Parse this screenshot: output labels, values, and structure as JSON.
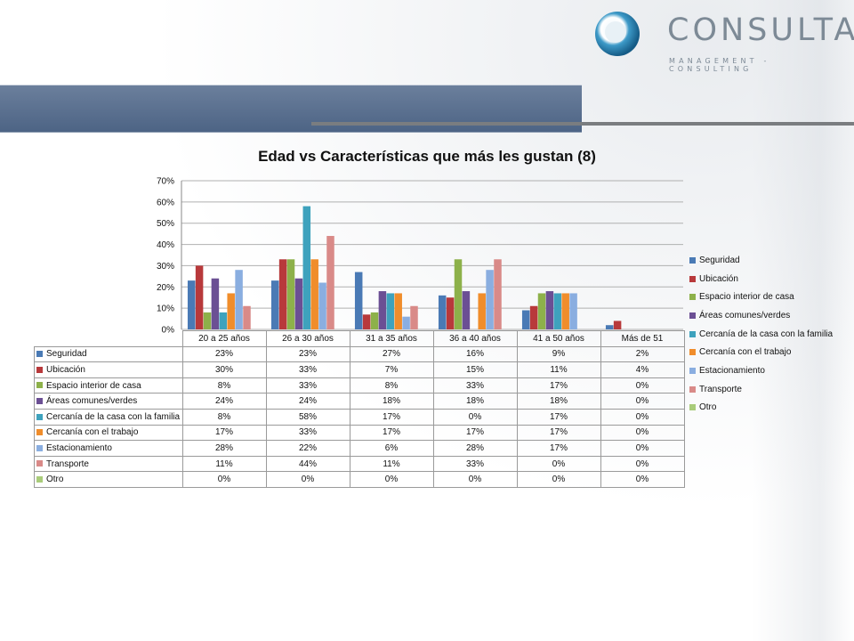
{
  "brand": {
    "name": "CONSULTA",
    "tagline": "MANAGEMENT - CONSULTING"
  },
  "chart_data": {
    "type": "bar",
    "title": "Edad vs Características que más les gustan (8)",
    "categories": [
      "20 a 25 años",
      "26 a 30 años",
      "31 a 35 años",
      "36 a 40 años",
      "41 a 50 años",
      "Más de 51"
    ],
    "ylim": [
      0,
      70
    ],
    "yticks": [
      "0%",
      "10%",
      "20%",
      "30%",
      "40%",
      "50%",
      "60%",
      "70%"
    ],
    "legend_position": "right",
    "grid": true,
    "series": [
      {
        "name": "Seguridad",
        "color": "#4a7ab5",
        "values": [
          23,
          23,
          27,
          16,
          9,
          2
        ],
        "labels": [
          "23%",
          "23%",
          "27%",
          "16%",
          "9%",
          "2%"
        ]
      },
      {
        "name": "Ubicación",
        "color": "#b8393b",
        "values": [
          30,
          33,
          7,
          15,
          11,
          4
        ],
        "labels": [
          "30%",
          "33%",
          "7%",
          "15%",
          "11%",
          "4%"
        ]
      },
      {
        "name": "Espacio interior de casa",
        "color": "#8db14a",
        "values": [
          8,
          33,
          8,
          33,
          17,
          0
        ],
        "labels": [
          "8%",
          "33%",
          "8%",
          "33%",
          "17%",
          "0%"
        ]
      },
      {
        "name": "Áreas comunes/verdes",
        "color": "#6b4f94",
        "values": [
          24,
          24,
          18,
          18,
          18,
          0
        ],
        "labels": [
          "24%",
          "24%",
          "18%",
          "18%",
          "18%",
          "0%"
        ]
      },
      {
        "name": "Cercanía de la casa con la familia",
        "color": "#3ea2bd",
        "values": [
          8,
          58,
          17,
          0,
          17,
          0
        ],
        "labels": [
          "8%",
          "58%",
          "17%",
          "0%",
          "17%",
          "0%"
        ]
      },
      {
        "name": "Cercanía con el trabajo",
        "color": "#f08d2b",
        "values": [
          17,
          33,
          17,
          17,
          17,
          0
        ],
        "labels": [
          "17%",
          "33%",
          "17%",
          "17%",
          "17%",
          "0%"
        ]
      },
      {
        "name": "Estacionamiento",
        "color": "#8aaee0",
        "values": [
          28,
          22,
          6,
          28,
          17,
          0
        ],
        "labels": [
          "28%",
          "22%",
          "6%",
          "28%",
          "17%",
          "0%"
        ]
      },
      {
        "name": "Transporte",
        "color": "#d98a88",
        "values": [
          11,
          44,
          11,
          33,
          0,
          0
        ],
        "labels": [
          "11%",
          "44%",
          "11%",
          "33%",
          "0%",
          "0%"
        ]
      },
      {
        "name": "Otro",
        "color": "#a9cc7a",
        "values": [
          0,
          0,
          0,
          0,
          0,
          0
        ],
        "labels": [
          "0%",
          "0%",
          "0%",
          "0%",
          "0%",
          "0%"
        ]
      }
    ]
  }
}
